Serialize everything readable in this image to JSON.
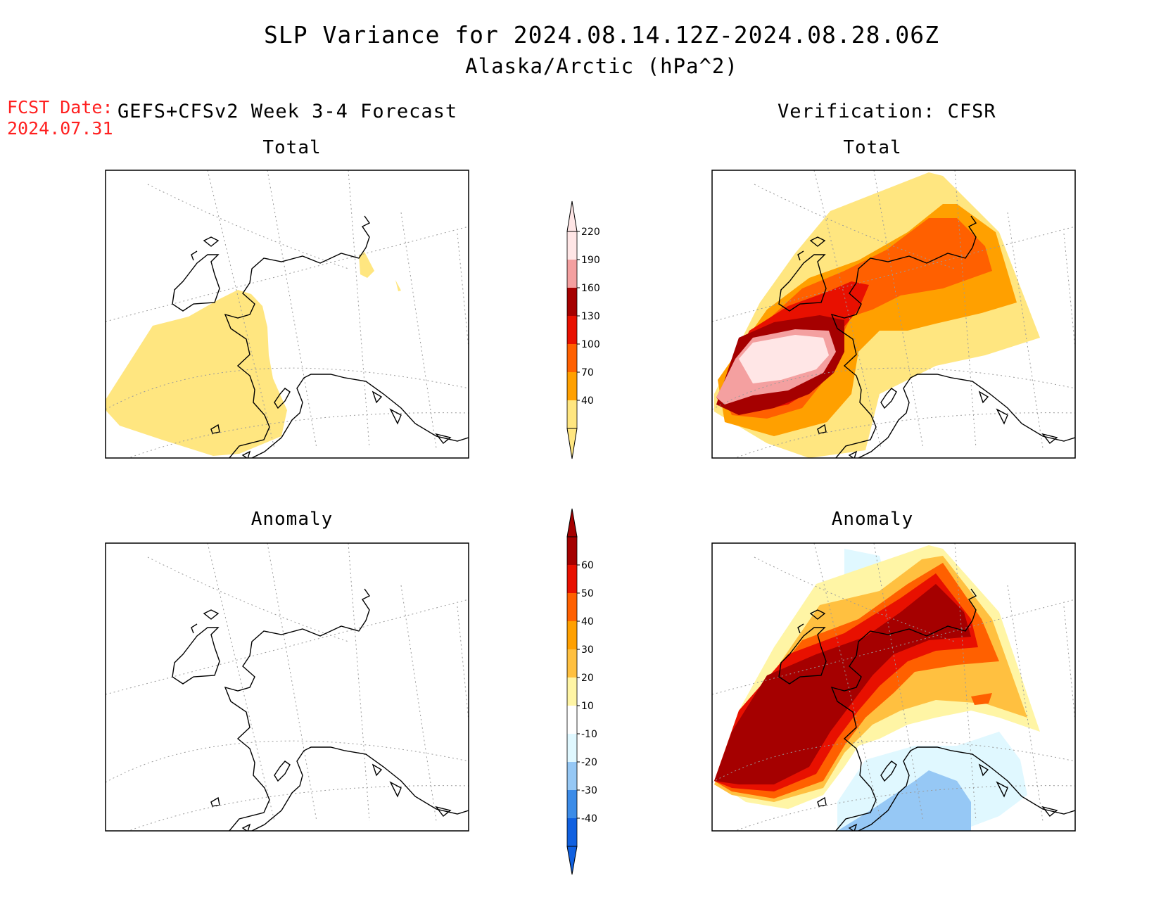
{
  "figure": {
    "title_line1": "SLP Variance for 2024.08.14.12Z-2024.08.28.06Z",
    "title_line2": "Alaska/Arctic (hPa^2)",
    "fcst_label": "FCST Date:",
    "fcst_date": "2024.07.31",
    "left_header": "GEFS+CFSv2 Week 3-4 Forecast",
    "right_header": "Verification: CFSR"
  },
  "panels": {
    "top_left": {
      "title": "Total"
    },
    "top_right": {
      "title": "Total"
    },
    "bottom_left": {
      "title": "Anomaly"
    },
    "bottom_right": {
      "title": "Anomaly"
    }
  },
  "colorbars": {
    "total": {
      "levels": [
        "40",
        "70",
        "100",
        "130",
        "160",
        "190",
        "220"
      ],
      "colors": [
        "#ffe680",
        "#ffa000",
        "#ff6000",
        "#e81000",
        "#a50000",
        "#f4a0a0",
        "#ffe6e6"
      ]
    },
    "anomaly": {
      "levels": [
        "-40",
        "-30",
        "-20",
        "-10",
        "10",
        "20",
        "30",
        "40",
        "50",
        "60"
      ],
      "colors": [
        "#1060e0",
        "#3c8ce8",
        "#96c8f5",
        "#e0f8ff",
        "#ffffff",
        "#fff5a5",
        "#ffc040",
        "#ffa000",
        "#ff6000",
        "#e81000",
        "#a50000"
      ]
    }
  }
}
